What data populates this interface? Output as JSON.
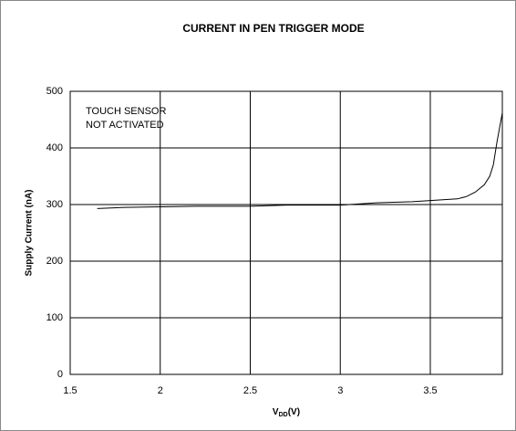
{
  "chart_data": {
    "type": "line",
    "title": "CURRENT IN PEN TRIGGER MODE",
    "y_label": "Supply Current (nA)",
    "x_label": {
      "text": "V",
      "subscript": "DD",
      "suffix": "(V)"
    },
    "annotations": [
      "TOUCH SENSOR",
      "NOT ACTIVATED"
    ],
    "x": [
      1.65,
      1.8,
      2.0,
      2.2,
      2.5,
      2.7,
      3.0,
      3.1,
      3.2,
      3.3,
      3.4,
      3.5,
      3.6,
      3.65,
      3.7,
      3.75,
      3.8,
      3.83,
      3.85,
      3.87,
      3.9
    ],
    "series": [
      {
        "color": "#000000",
        "values": [
          293,
          295,
          296,
          297,
          297,
          299,
          299,
          301,
          303,
          304,
          305,
          307,
          309,
          310,
          314,
          322,
          335,
          350,
          370,
          410,
          462
        ]
      }
    ],
    "xlim": [
      1.5,
      3.9
    ],
    "xticks": [
      1.5,
      2,
      2.5,
      3,
      3.5
    ],
    "ylim": [
      0,
      500
    ],
    "yticks": [
      0,
      100,
      200,
      300,
      400,
      500
    ],
    "grid": true
  }
}
